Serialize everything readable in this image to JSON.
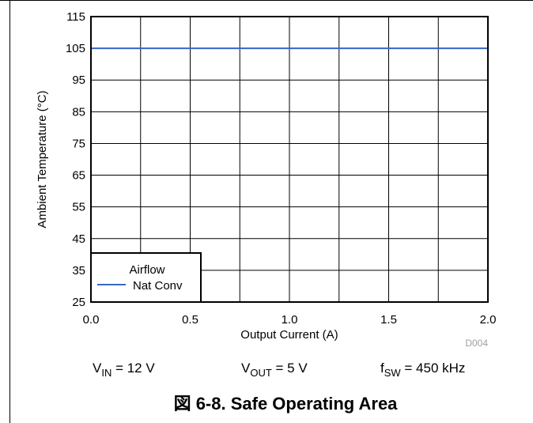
{
  "chart_data": {
    "type": "line",
    "xlabel": "Output Current (A)",
    "ylabel": "Ambient Temperature (°C)",
    "xlim": [
      0.0,
      2.0
    ],
    "ylim": [
      25,
      115
    ],
    "x_ticks": [
      "0.0",
      "0.5",
      "1.0",
      "1.5",
      "2.0"
    ],
    "y_ticks": [
      "25",
      "35",
      "45",
      "55",
      "65",
      "75",
      "85",
      "95",
      "105",
      "115"
    ],
    "minor_x_step": 0.25,
    "grid": true,
    "legend": {
      "title": "Airflow",
      "placement": "bottom-left"
    },
    "series": [
      {
        "name": "Nat Conv",
        "color": "#3a66c4",
        "x": [
          0.0,
          2.0
        ],
        "y": [
          105,
          105
        ]
      }
    ],
    "code": "D004"
  },
  "conditions": {
    "vin": {
      "main": "V",
      "sub": "IN",
      "rest": " = 12 V"
    },
    "vout": {
      "main": "V",
      "sub": "OUT",
      "rest": " = 5 V"
    },
    "fsw": {
      "main": "f",
      "sub": "SW",
      "rest": " = 450 kHz"
    }
  },
  "caption": "図 6-8. Safe Operating Area"
}
